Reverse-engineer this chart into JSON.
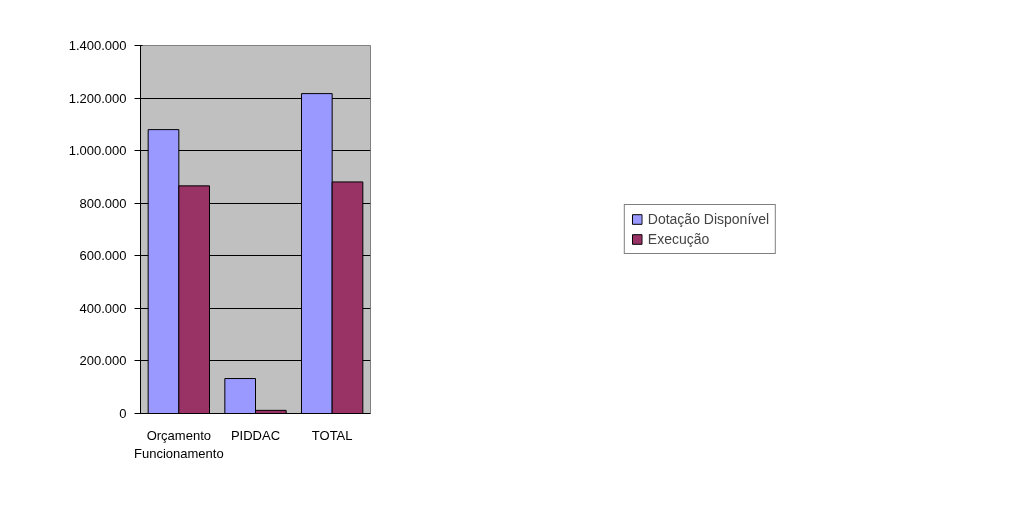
{
  "chart_data": {
    "type": "bar",
    "categories": [
      "Orçamento Funcionamento",
      "PIDDAC",
      "TOTAL"
    ],
    "series": [
      {
        "name": "Dotação Disponível",
        "color": "#9999ff",
        "values": [
          1080000,
          133000,
          1217000
        ]
      },
      {
        "name": "Execução",
        "color": "#993366",
        "values": [
          866000,
          12000,
          881000
        ]
      }
    ],
    "ylim": [
      0,
      1400000
    ],
    "yticks": [
      {
        "value": 0,
        "label": "0"
      },
      {
        "value": 200000,
        "label": "200.000"
      },
      {
        "value": 400000,
        "label": "400.000"
      },
      {
        "value": 600000,
        "label": "600.000"
      },
      {
        "value": 800000,
        "label": "800.000"
      },
      {
        "value": 1000000,
        "label": "1.000.000"
      },
      {
        "value": 1200000,
        "label": "1.200.000"
      },
      {
        "value": 1400000,
        "label": "1.400.000"
      }
    ],
    "grid": "y",
    "legend": "right"
  }
}
